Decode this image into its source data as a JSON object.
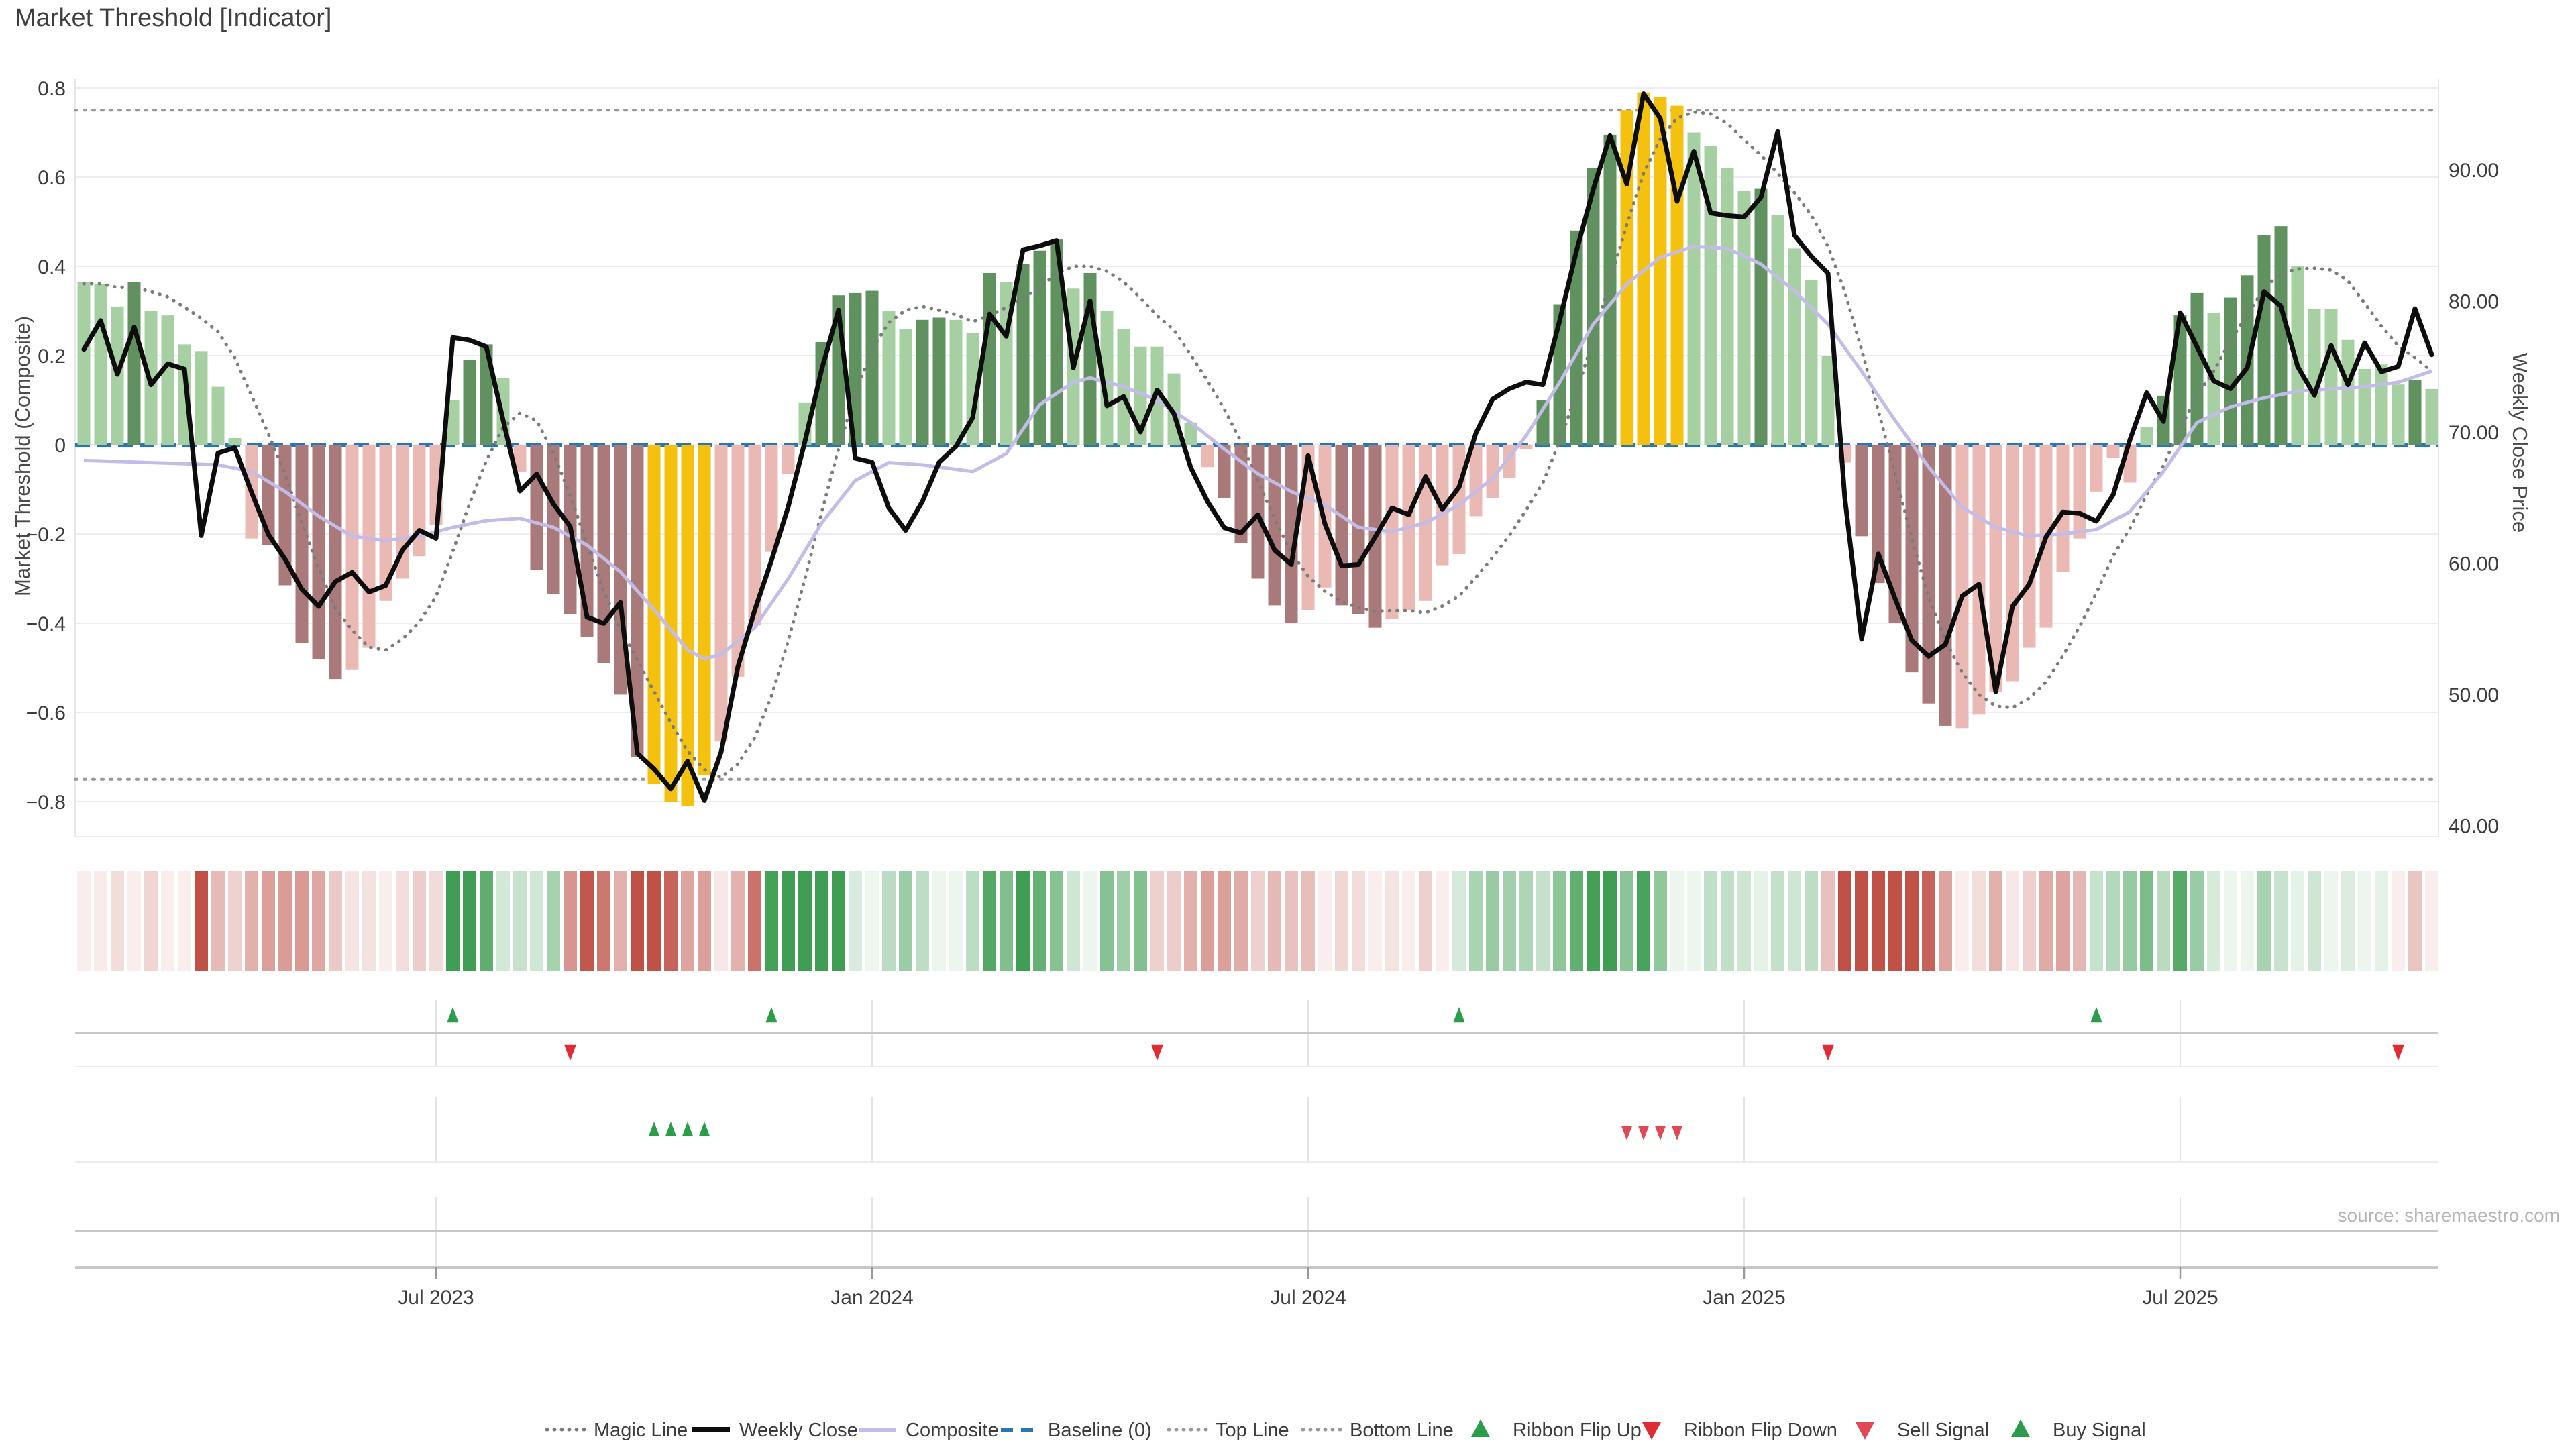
{
  "title": "Market Threshold [Indicator]",
  "source_note": "source: sharemaestro.com",
  "axes": {
    "left_label": "Market Threshold (Composite)",
    "right_label": "Weekly Close Price",
    "left_ticks": [
      {
        "label": "0.8",
        "v": 0.8
      },
      {
        "label": "0.6",
        "v": 0.6
      },
      {
        "label": "0.4",
        "v": 0.4
      },
      {
        "label": "0.2",
        "v": 0.2
      },
      {
        "label": "0",
        "v": 0.0
      },
      {
        "label": "−0.2",
        "v": -0.2
      },
      {
        "label": "−0.4",
        "v": -0.4
      },
      {
        "label": "−0.6",
        "v": -0.6
      },
      {
        "label": "−0.8",
        "v": -0.8
      }
    ],
    "right_ticks": [
      {
        "label": "90.00",
        "p": 90
      },
      {
        "label": "80.00",
        "p": 80
      },
      {
        "label": "70.00",
        "p": 70
      },
      {
        "label": "60.00",
        "p": 60
      },
      {
        "label": "50.00",
        "p": 50
      },
      {
        "label": "40.00",
        "p": 40
      }
    ],
    "x_ticks": [
      {
        "label": "Jul 2023",
        "week": 21
      },
      {
        "label": "Jan 2024",
        "week": 47
      },
      {
        "label": "Jul 2024",
        "week": 73
      },
      {
        "label": "Jan 2025",
        "week": 99
      },
      {
        "label": "Jul 2025",
        "week": 125
      }
    ]
  },
  "legend": [
    {
      "label": "Magic Line",
      "kind": "dotted-line",
      "color": "#7b7b7b"
    },
    {
      "label": "Weekly Close",
      "kind": "solid-line",
      "color": "#0d0d0d"
    },
    {
      "label": "Composite",
      "kind": "solid-line",
      "color": "#c3bce9"
    },
    {
      "label": "Baseline (0)",
      "kind": "dashed-line",
      "color": "#2777b5"
    },
    {
      "label": "Top Line",
      "kind": "dotted-line",
      "color": "#989898"
    },
    {
      "label": "Bottom Line",
      "kind": "dotted-line",
      "color": "#989898"
    },
    {
      "label": "Ribbon Flip Up",
      "kind": "tri-up",
      "color": "#2a9d4a"
    },
    {
      "label": "Ribbon Flip Down",
      "kind": "tri-down",
      "color": "#e12b32"
    },
    {
      "label": "Sell Signal",
      "kind": "tri-down",
      "color": "#e04a57"
    },
    {
      "label": "Buy Signal",
      "kind": "tri-up",
      "color": "#2a9d4a"
    }
  ],
  "palette": {
    "bar_green_light": "#a6d0a1",
    "bar_green_dark": "#60925f",
    "bar_gold": "#f4c20e",
    "bar_pink_light": "#eab9b4",
    "bar_pink_dark": "#a97a79",
    "line_close": "#0d0d0d",
    "line_composite": "#c3bce9",
    "line_magic": "#7b7b7b",
    "baseline": "#2777b5",
    "threshold": "#989898",
    "grid": "#ececf2",
    "plot_border": "#e8e8ec",
    "ribbon_green": "#3f9e53",
    "ribbon_red": "#bf5147",
    "flip_up": "#2a9d4a",
    "flip_down": "#e12b32",
    "sell": "#e04a57",
    "buy": "#2a9d4a",
    "panel_line": "#c8c8c8",
    "panel_line_faint": "#ececec",
    "panel_vgrid": "#e4e4e4",
    "axis_text": "#3c3c3c",
    "tick_mark": "#9a9a9a"
  },
  "chart_data": {
    "type": "combo",
    "x_unit": "week",
    "n_weeks": 141,
    "ylim_left": [
      -0.8,
      0.8
    ],
    "ylim_right": [
      40,
      90
    ],
    "top_line": 0.75,
    "bottom_line": -0.75,
    "baseline": 0,
    "gold_threshold": 0.7275,
    "series": [
      {
        "name": "Market Threshold (Composite)",
        "axis": "left",
        "style": "bars",
        "values": [
          0.365,
          0.36,
          0.31,
          0.365,
          0.3,
          0.29,
          0.225,
          0.21,
          0.13,
          0.015,
          -0.21,
          -0.225,
          -0.315,
          -0.445,
          -0.48,
          -0.525,
          -0.505,
          -0.455,
          -0.35,
          -0.3,
          -0.25,
          -0.18,
          0.1,
          0.19,
          0.225,
          0.15,
          -0.06,
          -0.28,
          -0.335,
          -0.38,
          -0.43,
          -0.49,
          -0.56,
          -0.7,
          -0.76,
          -0.8,
          -0.81,
          -0.74,
          -0.665,
          -0.52,
          -0.405,
          -0.24,
          -0.065,
          0.095,
          0.23,
          0.335,
          0.34,
          0.345,
          0.3,
          0.26,
          0.28,
          0.285,
          0.28,
          0.25,
          0.385,
          0.365,
          0.405,
          0.435,
          0.46,
          0.35,
          0.385,
          0.3,
          0.26,
          0.22,
          0.22,
          0.16,
          0.05,
          -0.05,
          -0.12,
          -0.22,
          -0.3,
          -0.36,
          -0.4,
          -0.37,
          -0.32,
          -0.36,
          -0.38,
          -0.41,
          -0.39,
          -0.37,
          -0.35,
          -0.27,
          -0.245,
          -0.16,
          -0.12,
          -0.075,
          -0.01,
          0.1,
          0.315,
          0.48,
          0.62,
          0.695,
          0.75,
          0.79,
          0.78,
          0.76,
          0.7,
          0.67,
          0.62,
          0.57,
          0.575,
          0.515,
          0.44,
          0.37,
          0.2,
          -0.04,
          -0.205,
          -0.31,
          -0.4,
          -0.51,
          -0.58,
          -0.63,
          -0.635,
          -0.605,
          -0.555,
          -0.53,
          -0.455,
          -0.41,
          -0.285,
          -0.21,
          -0.105,
          -0.03,
          -0.085,
          0.04,
          0.11,
          0.29,
          0.34,
          0.295,
          0.33,
          0.38,
          0.47,
          0.49,
          0.4,
          0.305,
          0.305,
          0.235,
          0.17,
          0.18,
          0.135,
          0.145,
          0.125
        ]
      },
      {
        "name": "Weekly Close",
        "axis": "right",
        "style": "line",
        "values": [
          76.3,
          78.5,
          74.4,
          78.0,
          73.6,
          75.2,
          74.8,
          62.1,
          68.4,
          68.8,
          65.4,
          62.2,
          60.3,
          58.0,
          56.7,
          58.6,
          59.3,
          57.8,
          58.3,
          61.0,
          62.5,
          61.9,
          77.2,
          77.0,
          76.5,
          70.9,
          65.5,
          66.8,
          64.5,
          62.8,
          55.9,
          55.4,
          57.0,
          45.5,
          44.3,
          42.8,
          44.9,
          41.9,
          45.6,
          52.1,
          56.4,
          60.2,
          64.3,
          69.3,
          74.8,
          79.3,
          68.0,
          67.7,
          64.2,
          62.5,
          64.7,
          67.7,
          68.9,
          71.1,
          79.0,
          77.3,
          83.9,
          84.2,
          84.6,
          74.9,
          80.0,
          72.0,
          72.7,
          70.0,
          73.2,
          71.4,
          67.3,
          64.7,
          62.7,
          62.3,
          63.7,
          61.0,
          59.9,
          68.2,
          63.0,
          59.8,
          59.9,
          62.0,
          64.2,
          63.7,
          66.6,
          64.1,
          65.8,
          69.9,
          72.5,
          73.3,
          73.8,
          73.6,
          78.5,
          83.8,
          88.5,
          92.6,
          88.9,
          95.8,
          93.9,
          87.6,
          91.4,
          86.7,
          86.5,
          86.4,
          87.9,
          92.9,
          85.0,
          83.4,
          82.1,
          65.0,
          54.2,
          60.7,
          57.3,
          54.1,
          52.9,
          53.8,
          57.5,
          58.4,
          50.2,
          56.7,
          58.4,
          62.0,
          63.9,
          63.8,
          63.2,
          65.2,
          69.4,
          73.0,
          70.8,
          79.1,
          76.5,
          73.9,
          73.3,
          74.9,
          80.7,
          79.6,
          75.0,
          72.8,
          76.6,
          73.6,
          76.8,
          74.6,
          75.0,
          79.4,
          75.9
        ]
      }
    ],
    "bar_shade": "LLLDLLLLLLLDDDDDLLLLLLLDDLLDDDDDDDLLLLLLLLLLDDDDLLDDLLDLDDDLDLLLLLLLDDDDDLLDDDLLLLLLLLLDDDDDLLLLLLLLDLLLLLDDDDDDLLLLLLLLLLLLDDDLDDDDLLLLLLLDL",
    "magic_line": {
      "name": "Magic Line",
      "derivation": "trailing mean of composite",
      "window": 6,
      "seed": 0.36
    },
    "composite_line_keypoints": [
      [
        0,
        -0.035
      ],
      [
        4,
        -0.04
      ],
      [
        8,
        -0.045
      ],
      [
        10,
        -0.06
      ],
      [
        12,
        -0.105
      ],
      [
        14,
        -0.16
      ],
      [
        16,
        -0.205
      ],
      [
        18,
        -0.215
      ],
      [
        20,
        -0.205
      ],
      [
        22,
        -0.185
      ],
      [
        24,
        -0.17
      ],
      [
        26,
        -0.165
      ],
      [
        28,
        -0.185
      ],
      [
        30,
        -0.225
      ],
      [
        32,
        -0.285
      ],
      [
        34,
        -0.37
      ],
      [
        36,
        -0.46
      ],
      [
        37,
        -0.48
      ],
      [
        38,
        -0.47
      ],
      [
        40,
        -0.41
      ],
      [
        42,
        -0.3
      ],
      [
        44,
        -0.175
      ],
      [
        46,
        -0.08
      ],
      [
        48,
        -0.04
      ],
      [
        50,
        -0.045
      ],
      [
        52,
        -0.055
      ],
      [
        53,
        -0.06
      ],
      [
        55,
        -0.02
      ],
      [
        57,
        0.09
      ],
      [
        59,
        0.14
      ],
      [
        60,
        0.15
      ],
      [
        62,
        0.13
      ],
      [
        64,
        0.1
      ],
      [
        66,
        0.05
      ],
      [
        68,
        -0.01
      ],
      [
        70,
        -0.065
      ],
      [
        72,
        -0.105
      ],
      [
        74,
        -0.135
      ],
      [
        76,
        -0.185
      ],
      [
        78,
        -0.195
      ],
      [
        80,
        -0.175
      ],
      [
        82,
        -0.135
      ],
      [
        84,
        -0.075
      ],
      [
        86,
        0.02
      ],
      [
        88,
        0.14
      ],
      [
        90,
        0.27
      ],
      [
        92,
        0.36
      ],
      [
        94,
        0.42
      ],
      [
        96,
        0.445
      ],
      [
        98,
        0.44
      ],
      [
        100,
        0.405
      ],
      [
        102,
        0.345
      ],
      [
        104,
        0.27
      ],
      [
        106,
        0.165
      ],
      [
        108,
        0.055
      ],
      [
        110,
        -0.05
      ],
      [
        112,
        -0.14
      ],
      [
        114,
        -0.185
      ],
      [
        116,
        -0.205
      ],
      [
        118,
        -0.2
      ],
      [
        120,
        -0.19
      ],
      [
        122,
        -0.15
      ],
      [
        124,
        -0.06
      ],
      [
        126,
        0.05
      ],
      [
        128,
        0.085
      ],
      [
        130,
        0.105
      ],
      [
        132,
        0.12
      ],
      [
        134,
        0.125
      ],
      [
        136,
        0.13
      ],
      [
        138,
        0.14
      ],
      [
        140,
        0.165
      ]
    ],
    "ribbon": {
      "green_ranges": [
        [
          22,
          28
        ],
        [
          41,
          63
        ],
        [
          82,
          103
        ],
        [
          120,
          137
        ]
      ],
      "intensity": {
        "derivation": "abs(close - trailing mean of close)",
        "window": 8,
        "seed": 77,
        "scale": 12
      }
    },
    "signals": {
      "ribbon_flip_up": [
        22,
        41,
        82,
        120
      ],
      "ribbon_flip_down": [
        29,
        64,
        104,
        138
      ],
      "buy": [
        34,
        35,
        36,
        37
      ],
      "sell": [
        92,
        93,
        94,
        95
      ]
    }
  }
}
